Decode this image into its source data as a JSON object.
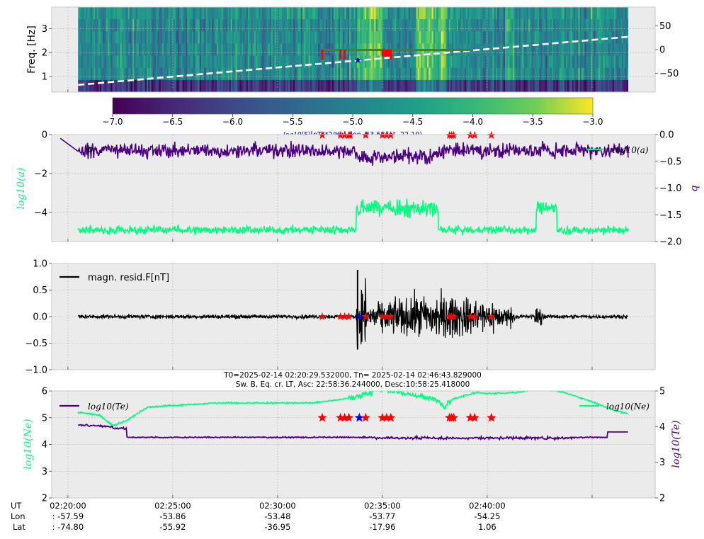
{
  "colors": {
    "panel_bg": "#ebebeb",
    "grid": "#b0b0b0",
    "purple": "#4b0082",
    "spring_green": "#00ff7f",
    "black": "#000000",
    "red_marker": "#ff0000",
    "blue_marker": "#0000ff",
    "olive_bar": "#4f7f16",
    "dashed_line": "#ffffff"
  },
  "chart_data": [
    {
      "id": "spectrogram",
      "type": "heatmap",
      "ylabel": "Freq. [Hz]",
      "ylim": [
        0.35,
        3.9
      ],
      "yticks": [
        "1",
        "2",
        "3"
      ],
      "right_yticks": [
        "50",
        "0",
        "−50"
      ],
      "right_ylim": [
        -90,
        90
      ],
      "colormap": "viridis",
      "colorbar": {
        "range": [
          -7.0,
          -3.0
        ],
        "ticks": [
          "−7.0",
          "−6.5",
          "−6.0",
          "−5.5",
          "−5.0",
          "−4.5",
          "−4.0",
          "−3.5",
          "−3.0"
        ],
        "label": "log10(F)[nT**2/Hz] (lon -53.68 lat -22.10)"
      },
      "latitude_line": {
        "start": -74.8,
        "end": 27.0,
        "style": "dashed white"
      },
      "high_power_intervals": [
        [
          "02:33:45",
          "02:35:00"
        ],
        [
          "02:36:35",
          "02:38:05"
        ],
        [
          "02:40:50",
          "02:41:05"
        ]
      ]
    },
    {
      "id": "log-a-b",
      "type": "line",
      "panel_label": "b",
      "left_ylabel": "log10(a)",
      "right_ylabel": "b",
      "left_ylim": [
        -5.5,
        0
      ],
      "right_ylim": [
        -2.0,
        0
      ],
      "left_yticks": [
        "0",
        "−2",
        "−4"
      ],
      "right_yticks": [
        "0.0",
        "−0.5",
        "−1.0",
        "−1.5",
        "−2.0"
      ],
      "legend": "log10(a)",
      "legend_position": "top-right",
      "series": [
        {
          "name": "log10(a)",
          "axis": "left",
          "baseline": -4.9,
          "elevated": -3.8,
          "elevated_interval": [
            "02:33:45",
            "02:37:40"
          ],
          "end": "02:46:44"
        },
        {
          "name": "b",
          "axis": "right",
          "baseline": -0.3,
          "range": [
            -0.8,
            -0.05
          ]
        }
      ]
    },
    {
      "id": "mag-residual",
      "type": "line",
      "ylim": [
        -1.0,
        1.0
      ],
      "yticks": [
        "1.0",
        "0.5",
        "0.0",
        "−0.5",
        "−1.0"
      ],
      "legend": "magn. resid.F[nT]",
      "legend_position": "top-left",
      "series": [
        {
          "name": "magn. resid.F[nT]",
          "quiet_amplitude": 0.03,
          "max": 0.88,
          "min": -0.62,
          "active_interval": [
            "02:33:45",
            "02:41:20"
          ]
        }
      ]
    },
    {
      "id": "plasma",
      "type": "line",
      "left_ylabel": "log10(Ne)",
      "right_ylabel": "log10(Te)",
      "left_ylim": [
        2,
        6
      ],
      "right_ylim": [
        2,
        5
      ],
      "left_yticks": [
        "6",
        "5",
        "4",
        "3",
        "2"
      ],
      "right_yticks": [
        "5",
        "4",
        "3",
        "2"
      ],
      "legend_left": "log10(Te)",
      "legend_right": "log10(Ne)",
      "legend_positions": [
        "top-left",
        "top-right"
      ],
      "series": [
        {
          "name": "log10(Ne)",
          "axis": "left",
          "start": 5.2,
          "min": 4.65,
          "peak": 6.0
        },
        {
          "name": "log10(Te)",
          "axis": "right",
          "start": 4.05,
          "level": 3.7,
          "end": 3.85
        }
      ]
    }
  ],
  "time_axis": {
    "start": "02:20:29",
    "end": "02:46:43",
    "ticks": [
      "02:20:00",
      "02:25:00",
      "02:30:00",
      "02:35:00",
      "02:40:00"
    ]
  },
  "events": {
    "times": [
      "02:32:08",
      "02:33:00",
      "02:33:12",
      "02:33:24",
      "02:33:28",
      "02:34:12",
      "02:35:00",
      "02:35:12",
      "02:35:24",
      "02:38:12",
      "02:38:18",
      "02:38:24",
      "02:39:12",
      "02:39:24",
      "02:40:12"
    ],
    "blue_time": "02:33:54",
    "mag_times": [
      "02:32:08",
      "02:33:00",
      "02:33:12",
      "02:33:24",
      "02:33:54",
      "02:34:12",
      "02:35:00",
      "02:35:12",
      "02:35:24",
      "02:38:12",
      "02:38:18",
      "02:38:24",
      "02:39:12",
      "02:39:24",
      "02:40:12"
    ]
  },
  "texts": {
    "colorbar_label_prefix": "log10",
    "colorbar_label": "(F)[nT**2/Hz] (lon -53.68 lat -22.10)",
    "title_line1": "T0=2025-02-14 02:20:29.532000, Tn= 2025-02-14 02:46:43.829000",
    "title_line2": "Sw. B, Eq. cr. LT, Asc: 22:58:36.244000, Desc:10:58:25.418000",
    "footer_labels": [
      "UT",
      "Lon",
      "Lat"
    ],
    "lon_values": [
      ": -57.59",
      "-53.86",
      "-53.48",
      "-53.77",
      "-54.25"
    ],
    "lat_values": [
      ": -74.80",
      "-55.92",
      "-36.95",
      "-17.96",
      "1.06"
    ]
  }
}
